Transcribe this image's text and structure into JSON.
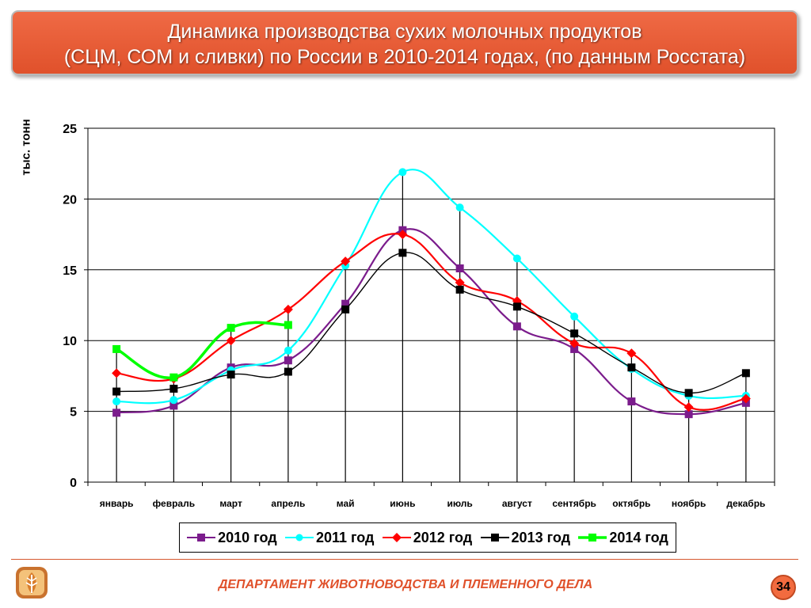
{
  "header": {
    "title_line1": "Динамика производства сухих молочных продуктов",
    "title_line2": "(СЦМ, СОМ и сливки) по России в 2010-2014 годах, (по данным Росстата)"
  },
  "footer": {
    "department": "ДЕПАРТАМЕНТ ЖИВОТНОВОДСТВА И ПЛЕМЕННОГО ДЕЛА",
    "page_number": "34"
  },
  "chart_data": {
    "type": "line",
    "ylabel": "тыс. тонн",
    "ylim": [
      0,
      25
    ],
    "yticks": [
      0,
      5,
      10,
      15,
      20,
      25
    ],
    "grid": true,
    "legend_position": "bottom",
    "categories": [
      "январь",
      "февраль",
      "март",
      "апрель",
      "май",
      "июнь",
      "июль",
      "август",
      "сентябрь",
      "октябрь",
      "ноябрь",
      "декабрь"
    ],
    "series": [
      {
        "name": "2010 год",
        "color": "#7b1c8c",
        "marker": "square",
        "values": [
          4.9,
          5.4,
          8.1,
          8.6,
          12.6,
          17.8,
          15.1,
          11.0,
          9.4,
          5.7,
          4.8,
          5.6
        ]
      },
      {
        "name": "2011 год",
        "color": "#00ffff",
        "marker": "circle",
        "values": [
          5.7,
          5.8,
          7.9,
          9.3,
          15.3,
          21.9,
          19.4,
          15.8,
          11.7,
          8.0,
          6.1,
          6.1
        ]
      },
      {
        "name": "2012 год",
        "color": "#ff0000",
        "marker": "diamond",
        "values": [
          7.7,
          7.3,
          10.0,
          12.2,
          15.6,
          17.5,
          14.1,
          12.8,
          9.8,
          9.1,
          5.3,
          5.9
        ]
      },
      {
        "name": "2013 год",
        "color": "#000000",
        "marker": "square",
        "values": [
          6.4,
          6.6,
          7.6,
          7.8,
          12.2,
          16.2,
          13.6,
          12.4,
          10.5,
          8.1,
          6.3,
          7.7
        ]
      },
      {
        "name": "2014 год",
        "color": "#00ff00",
        "marker": "square",
        "values": [
          9.4,
          7.4,
          10.9,
          11.1,
          null,
          null,
          null,
          null,
          null,
          null,
          null,
          null
        ]
      }
    ]
  }
}
